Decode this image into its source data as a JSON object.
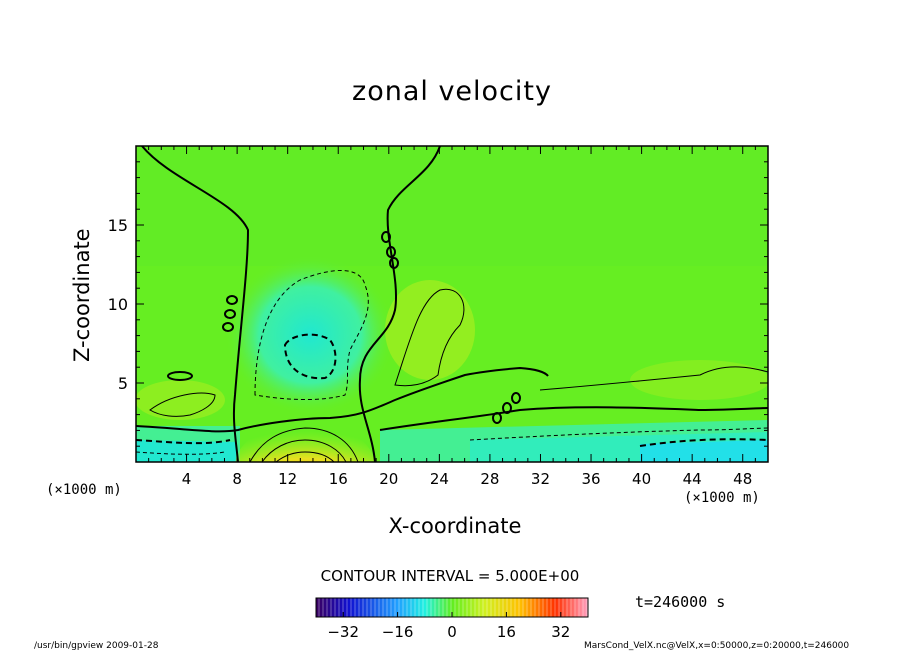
{
  "chart_data": {
    "type": "heatmap",
    "title": "zonal velocity",
    "xlabel": "X-coordinate",
    "ylabel": "Z-coordinate",
    "x_unit": "(×1000 m)",
    "xlim": [
      0,
      50
    ],
    "ylim": [
      0,
      20
    ],
    "x_ticks": [
      "4",
      "8",
      "12",
      "16",
      "20",
      "24",
      "28",
      "32",
      "36",
      "40",
      "44",
      "48"
    ],
    "y_ticks": [
      "5",
      "10",
      "15"
    ],
    "contour_interval": "CONTOUR INTERVAL = 5.000E+00",
    "colorbar": {
      "range": [
        -40,
        40
      ],
      "ticks": [
        "−32",
        "−16",
        "0",
        "16",
        "32"
      ]
    },
    "annotations": {
      "time": "t=246000 s",
      "footer_left": "/usr/bin/gpview   2009-01-28",
      "footer_right": "MarsCond_VelX.nc@VelX,x=0:50000,z=0:20000,t=246000"
    },
    "colors": {
      "background_field": "#66ee22",
      "positive_max": "#ff6a00",
      "negative_min": "#22eedd"
    }
  }
}
